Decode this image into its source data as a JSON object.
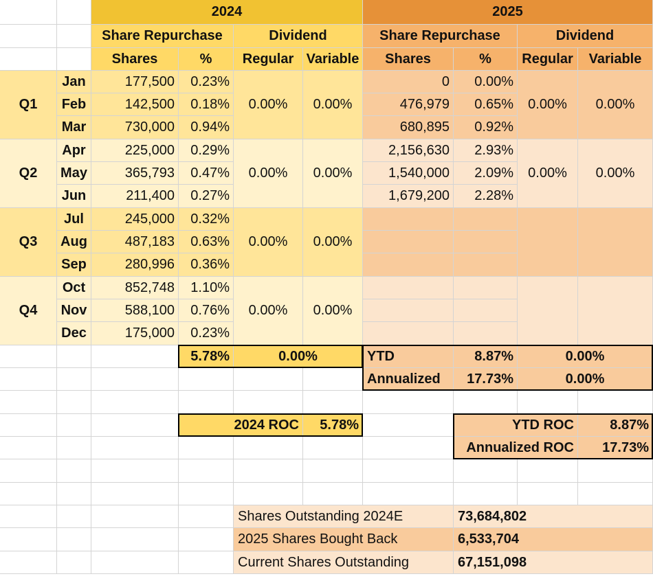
{
  "header": {
    "year_2024": "2024",
    "year_2025": "2025",
    "share_repurchase": "Share Repurchase",
    "dividend": "Dividend",
    "shares": "Shares",
    "percent": "%",
    "regular": "Regular",
    "variable": "Variable"
  },
  "quarters": [
    {
      "label": "Q1",
      "div2024_regular": "0.00%",
      "div2024_variable": "0.00%",
      "div2025_regular": "0.00%",
      "div2025_variable": "0.00%"
    },
    {
      "label": "Q2",
      "div2024_regular": "0.00%",
      "div2024_variable": "0.00%",
      "div2025_regular": "0.00%",
      "div2025_variable": "0.00%"
    },
    {
      "label": "Q3",
      "div2024_regular": "0.00%",
      "div2024_variable": "0.00%",
      "div2025_regular": "",
      "div2025_variable": ""
    },
    {
      "label": "Q4",
      "div2024_regular": "0.00%",
      "div2024_variable": "0.00%",
      "div2025_regular": "",
      "div2025_variable": ""
    }
  ],
  "months": [
    {
      "name": "Jan",
      "shares_2024": "177,500",
      "pct_2024": "0.23%",
      "shares_2025": "0",
      "pct_2025": "0.00%"
    },
    {
      "name": "Feb",
      "shares_2024": "142,500",
      "pct_2024": "0.18%",
      "shares_2025": "476,979",
      "pct_2025": "0.65%"
    },
    {
      "name": "Mar",
      "shares_2024": "730,000",
      "pct_2024": "0.94%",
      "shares_2025": "680,895",
      "pct_2025": "0.92%"
    },
    {
      "name": "Apr",
      "shares_2024": "225,000",
      "pct_2024": "0.29%",
      "shares_2025": "2,156,630",
      "pct_2025": "2.93%"
    },
    {
      "name": "May",
      "shares_2024": "365,793",
      "pct_2024": "0.47%",
      "shares_2025": "1,540,000",
      "pct_2025": "2.09%"
    },
    {
      "name": "Jun",
      "shares_2024": "211,400",
      "pct_2024": "0.27%",
      "shares_2025": "1,679,200",
      "pct_2025": "2.28%"
    },
    {
      "name": "Jul",
      "shares_2024": "245,000",
      "pct_2024": "0.32%",
      "shares_2025": "",
      "pct_2025": ""
    },
    {
      "name": "Aug",
      "shares_2024": "487,183",
      "pct_2024": "0.63%",
      "shares_2025": "",
      "pct_2025": ""
    },
    {
      "name": "Sep",
      "shares_2024": "280,996",
      "pct_2024": "0.36%",
      "shares_2025": "",
      "pct_2025": ""
    },
    {
      "name": "Oct",
      "shares_2024": "852,748",
      "pct_2024": "1.10%",
      "shares_2025": "",
      "pct_2025": ""
    },
    {
      "name": "Nov",
      "shares_2024": "588,100",
      "pct_2024": "0.76%",
      "shares_2025": "",
      "pct_2025": ""
    },
    {
      "name": "Dec",
      "shares_2024": "175,000",
      "pct_2024": "0.23%",
      "shares_2025": "",
      "pct_2025": ""
    }
  ],
  "totals": {
    "total_2024_pct": "5.78%",
    "total_2024_div": "0.00%",
    "ytd_label": "YTD",
    "ytd_pct": "8.87%",
    "ytd_div": "0.00%",
    "annualized_label": "Annualized",
    "annualized_pct": "17.73%",
    "annualized_div": "0.00%"
  },
  "roc": {
    "roc_2024_label": "2024 ROC",
    "roc_2024_value": "5.78%",
    "ytd_roc_label": "YTD ROC",
    "ytd_roc_value": "8.87%",
    "annualized_roc_label": "Annualized ROC",
    "annualized_roc_value": "17.73%"
  },
  "summary": [
    {
      "label": "Shares Outstanding 2024E",
      "value": "73,684,802"
    },
    {
      "label": "2025 Shares Bought Back",
      "value": "6,533,704"
    },
    {
      "label": "Current Shares Outstanding",
      "value": "67,151,098"
    }
  ],
  "colors": {
    "header_2024": "#f1c232",
    "sub_2024": "#ffd966",
    "band_2024_dark": "#ffe599",
    "band_2024_light": "#fff2cc",
    "header_2025": "#e69138",
    "sub_2025": "#f6b26b",
    "band_2025_dark": "#f9cb9c",
    "band_2025_light": "#fce5cd",
    "grid": "#d4d4d4"
  }
}
